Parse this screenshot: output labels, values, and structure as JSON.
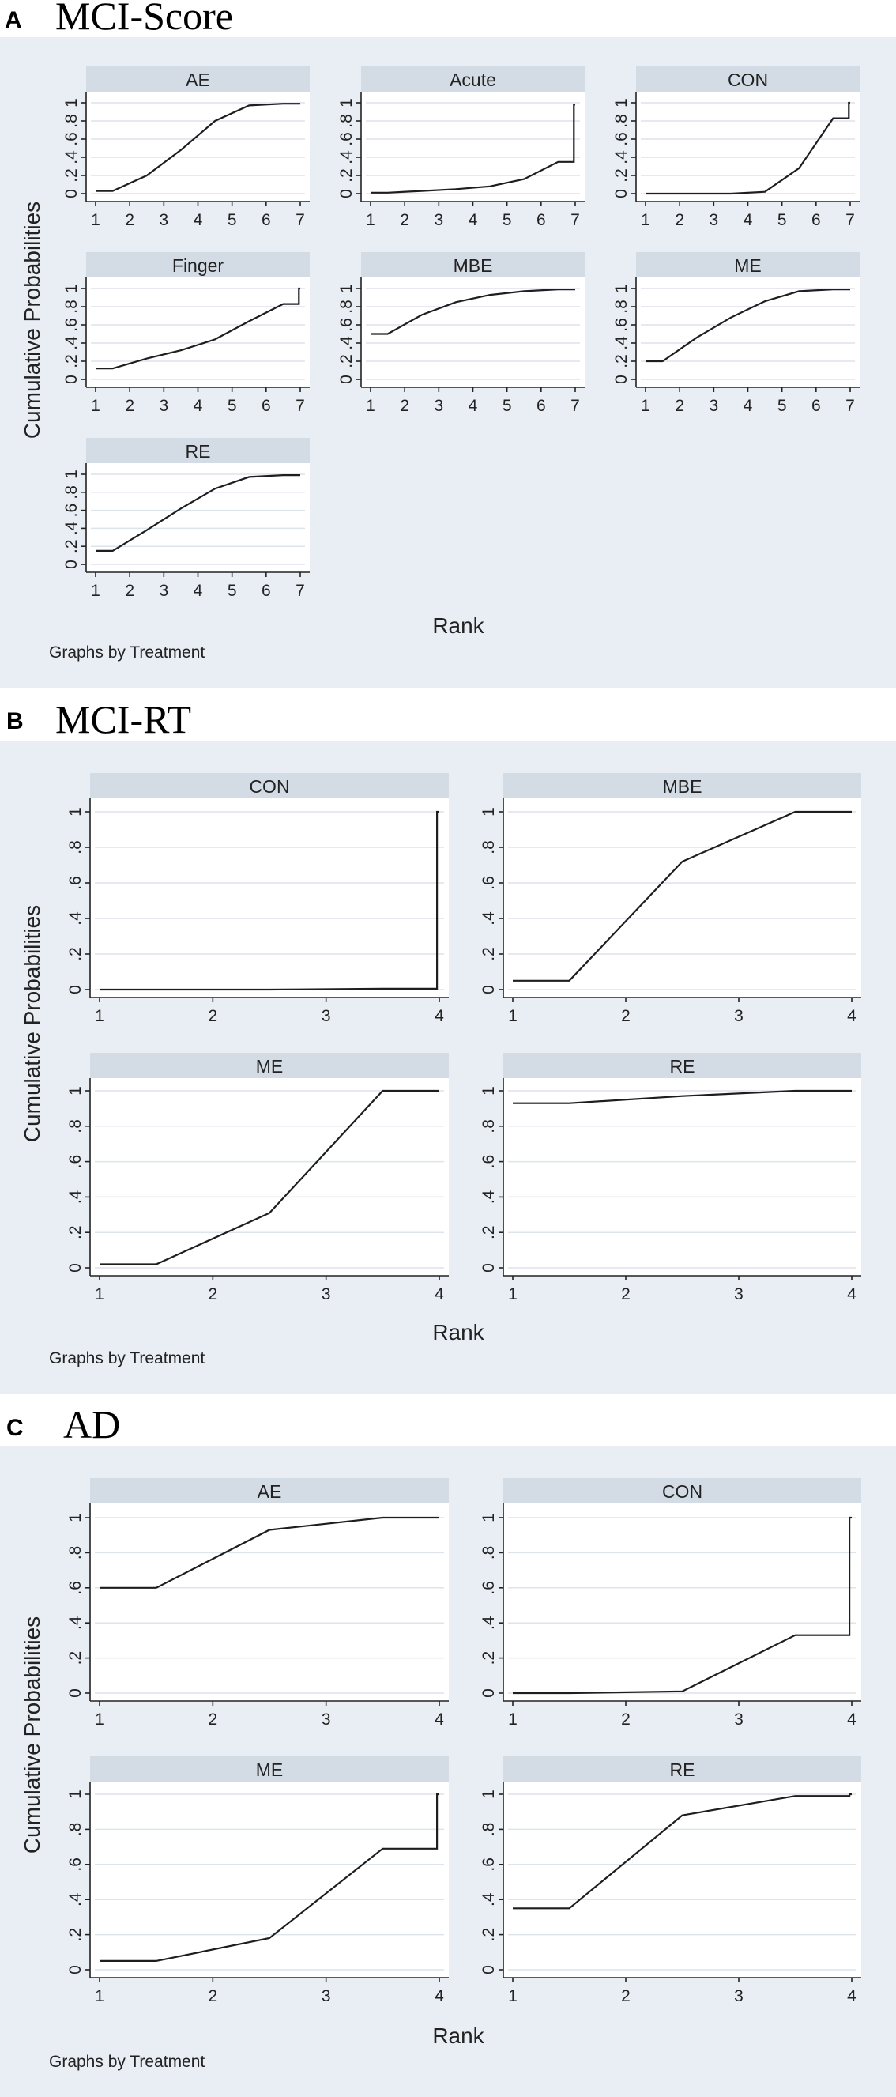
{
  "chart_data": [
    {
      "type": "line",
      "panel": "A",
      "title": "MCI-Score",
      "xlabel": "Rank",
      "ylabel": "Cumulative Probabilities",
      "note": "Graphs by Treatment",
      "xlim": [
        1,
        7
      ],
      "ylim": [
        0,
        1
      ],
      "xticks": [
        "1",
        "2",
        "3",
        "4",
        "5",
        "6",
        "7"
      ],
      "yticks": [
        "0",
        ".2",
        ".4",
        ".6",
        ".8",
        "1"
      ],
      "grid": true,
      "series": [
        {
          "name": "AE",
          "points": [
            [
              1,
              0.03
            ],
            [
              1.5,
              0.03
            ],
            [
              2.5,
              0.2
            ],
            [
              3.5,
              0.48
            ],
            [
              4.5,
              0.8
            ],
            [
              5.5,
              0.97
            ],
            [
              6.5,
              0.99
            ],
            [
              7,
              0.99
            ]
          ]
        },
        {
          "name": "Acute",
          "points": [
            [
              1,
              0.01
            ],
            [
              1.5,
              0.01
            ],
            [
              2.5,
              0.03
            ],
            [
              3.5,
              0.05
            ],
            [
              4.5,
              0.08
            ],
            [
              5.5,
              0.16
            ],
            [
              6.5,
              0.35
            ],
            [
              6.96,
              0.35
            ],
            [
              6.96,
              0.98
            ],
            [
              7,
              0.98
            ]
          ]
        },
        {
          "name": "CON",
          "points": [
            [
              1,
              0
            ],
            [
              1.5,
              0
            ],
            [
              2.5,
              0
            ],
            [
              3.5,
              0
            ],
            [
              4.5,
              0.02
            ],
            [
              5.5,
              0.28
            ],
            [
              6.5,
              0.83
            ],
            [
              6.96,
              0.83
            ],
            [
              6.96,
              1
            ],
            [
              7,
              1
            ]
          ]
        },
        {
          "name": "Finger",
          "points": [
            [
              1,
              0.12
            ],
            [
              1.5,
              0.12
            ],
            [
              2.5,
              0.23
            ],
            [
              3.5,
              0.32
            ],
            [
              4.5,
              0.44
            ],
            [
              5.5,
              0.64
            ],
            [
              6.5,
              0.83
            ],
            [
              6.96,
              0.83
            ],
            [
              6.96,
              1
            ],
            [
              7,
              1
            ]
          ]
        },
        {
          "name": "MBE",
          "points": [
            [
              1,
              0.5
            ],
            [
              1.5,
              0.5
            ],
            [
              2.5,
              0.71
            ],
            [
              3.5,
              0.85
            ],
            [
              4.5,
              0.93
            ],
            [
              5.5,
              0.97
            ],
            [
              6.5,
              0.99
            ],
            [
              7,
              0.99
            ]
          ]
        },
        {
          "name": "ME",
          "points": [
            [
              1,
              0.2
            ],
            [
              1.5,
              0.2
            ],
            [
              2.5,
              0.46
            ],
            [
              3.5,
              0.68
            ],
            [
              4.5,
              0.86
            ],
            [
              5.5,
              0.97
            ],
            [
              6.5,
              0.99
            ],
            [
              7,
              0.99
            ]
          ]
        },
        {
          "name": "RE",
          "points": [
            [
              1,
              0.15
            ],
            [
              1.5,
              0.15
            ],
            [
              2.5,
              0.38
            ],
            [
              3.5,
              0.62
            ],
            [
              4.5,
              0.84
            ],
            [
              5.5,
              0.97
            ],
            [
              6.5,
              0.99
            ],
            [
              7,
              0.99
            ]
          ]
        }
      ]
    },
    {
      "type": "line",
      "panel": "B",
      "title": "MCI-RT",
      "xlabel": "Rank",
      "ylabel": "Cumulative Probabilities",
      "note": "Graphs by Treatment",
      "xlim": [
        1,
        4
      ],
      "ylim": [
        0,
        1
      ],
      "xticks": [
        "1",
        "2",
        "3",
        "4"
      ],
      "yticks": [
        "0",
        ".2",
        ".4",
        ".6",
        ".8",
        "1"
      ],
      "grid": true,
      "series": [
        {
          "name": "CON",
          "points": [
            [
              1,
              0
            ],
            [
              1.5,
              0
            ],
            [
              2.5,
              0
            ],
            [
              3.5,
              0.005
            ],
            [
              3.98,
              0.005
            ],
            [
              3.98,
              1
            ],
            [
              4,
              1
            ]
          ]
        },
        {
          "name": "MBE",
          "points": [
            [
              1,
              0.05
            ],
            [
              1.5,
              0.05
            ],
            [
              2.5,
              0.72
            ],
            [
              3.5,
              1
            ],
            [
              4,
              1
            ]
          ]
        },
        {
          "name": "ME",
          "points": [
            [
              1,
              0.02
            ],
            [
              1.5,
              0.02
            ],
            [
              2.5,
              0.31
            ],
            [
              3.5,
              1
            ],
            [
              4,
              1
            ]
          ]
        },
        {
          "name": "RE",
          "points": [
            [
              1,
              0.93
            ],
            [
              1.5,
              0.93
            ],
            [
              2.5,
              0.97
            ],
            [
              3.5,
              1
            ],
            [
              4,
              1
            ]
          ]
        }
      ]
    },
    {
      "type": "line",
      "panel": "C",
      "title": "AD",
      "xlabel": "Rank",
      "ylabel": "Cumulative Probabilities",
      "note": "Graphs by Treatment",
      "xlim": [
        1,
        4
      ],
      "ylim": [
        0,
        1
      ],
      "xticks": [
        "1",
        "2",
        "3",
        "4"
      ],
      "yticks": [
        "0",
        ".2",
        ".4",
        ".6",
        ".8",
        "1"
      ],
      "grid": true,
      "series": [
        {
          "name": "AE",
          "points": [
            [
              1,
              0.6
            ],
            [
              1.5,
              0.6
            ],
            [
              2.5,
              0.93
            ],
            [
              3.5,
              1
            ],
            [
              4,
              1
            ]
          ]
        },
        {
          "name": "CON",
          "points": [
            [
              1,
              0
            ],
            [
              1.5,
              0
            ],
            [
              2.5,
              0.01
            ],
            [
              3.5,
              0.33
            ],
            [
              3.98,
              0.33
            ],
            [
              3.98,
              1
            ],
            [
              4,
              1
            ]
          ]
        },
        {
          "name": "ME",
          "points": [
            [
              1,
              0.05
            ],
            [
              1.5,
              0.05
            ],
            [
              2.5,
              0.18
            ],
            [
              3.5,
              0.69
            ],
            [
              3.98,
              0.69
            ],
            [
              3.98,
              1
            ],
            [
              4,
              1
            ]
          ]
        },
        {
          "name": "RE",
          "points": [
            [
              1,
              0.35
            ],
            [
              1.5,
              0.35
            ],
            [
              2.5,
              0.88
            ],
            [
              3.5,
              0.99
            ],
            [
              3.98,
              0.99
            ],
            [
              3.98,
              1
            ],
            [
              4,
              1
            ]
          ]
        }
      ]
    }
  ]
}
